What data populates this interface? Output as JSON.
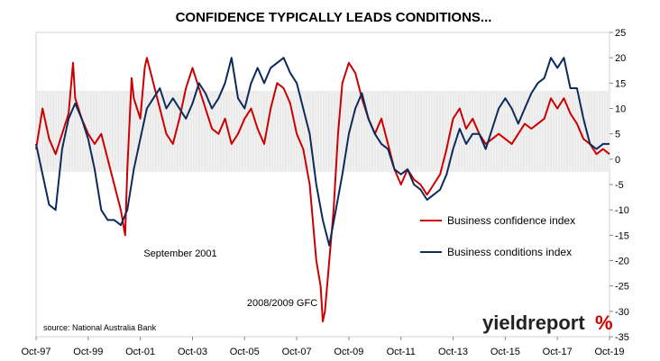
{
  "chart_data": {
    "type": "line",
    "title": "CONFIDENCE TYPICALLY LEADS CONDITIONS...",
    "x_ticks": [
      "Oct-97",
      "Oct-99",
      "Oct-01",
      "Oct-03",
      "Oct-05",
      "Oct-07",
      "Oct-09",
      "Oct-11",
      "Oct-13",
      "Oct-15",
      "Oct-17",
      "Oct-19"
    ],
    "x_range": [
      "1997-10",
      "2019-10"
    ],
    "ylim": [
      -35,
      25
    ],
    "y_ticks": [
      25,
      20,
      15,
      10,
      5,
      0,
      -5,
      -10,
      -15,
      -20,
      -25,
      -30,
      -35
    ],
    "y_axis_side": "right",
    "grid": false,
    "legend_placement": "right-middle",
    "series": [
      {
        "name": "Business confidence index",
        "color": "#cc0000",
        "points": [
          [
            "1997-10",
            2
          ],
          [
            "1998-01",
            10
          ],
          [
            "1998-04",
            4
          ],
          [
            "1998-07",
            1
          ],
          [
            "1998-10",
            5
          ],
          [
            "1999-01",
            9
          ],
          [
            "1999-03",
            19
          ],
          [
            "1999-04",
            12
          ],
          [
            "1999-07",
            8
          ],
          [
            "1999-10",
            5
          ],
          [
            "2000-01",
            3
          ],
          [
            "2000-04",
            5
          ],
          [
            "2000-07",
            0
          ],
          [
            "2000-10",
            -5
          ],
          [
            "2001-01",
            -10
          ],
          [
            "2001-03",
            -15
          ],
          [
            "2001-04",
            -2
          ],
          [
            "2001-06",
            16
          ],
          [
            "2001-07",
            12
          ],
          [
            "2001-10",
            8
          ],
          [
            "2001-12",
            18
          ],
          [
            "2002-01",
            20
          ],
          [
            "2002-04",
            15
          ],
          [
            "2002-07",
            10
          ],
          [
            "2002-10",
            5
          ],
          [
            "2003-01",
            3
          ],
          [
            "2003-04",
            8
          ],
          [
            "2003-07",
            14
          ],
          [
            "2003-10",
            18
          ],
          [
            "2004-01",
            14
          ],
          [
            "2004-04",
            10
          ],
          [
            "2004-07",
            6
          ],
          [
            "2004-10",
            5
          ],
          [
            "2005-01",
            8
          ],
          [
            "2005-04",
            3
          ],
          [
            "2005-07",
            5
          ],
          [
            "2005-10",
            8
          ],
          [
            "2006-01",
            10
          ],
          [
            "2006-04",
            6
          ],
          [
            "2006-07",
            3
          ],
          [
            "2006-10",
            10
          ],
          [
            "2007-01",
            15
          ],
          [
            "2007-04",
            14
          ],
          [
            "2007-07",
            11
          ],
          [
            "2007-10",
            5
          ],
          [
            "2008-01",
            2
          ],
          [
            "2008-04",
            -5
          ],
          [
            "2008-07",
            -20
          ],
          [
            "2008-09",
            -25
          ],
          [
            "2008-10",
            -32
          ],
          [
            "2008-11",
            -30
          ],
          [
            "2009-01",
            -20
          ],
          [
            "2009-03",
            -10
          ],
          [
            "2009-05",
            5
          ],
          [
            "2009-07",
            15
          ],
          [
            "2009-10",
            19
          ],
          [
            "2010-01",
            17
          ],
          [
            "2010-04",
            12
          ],
          [
            "2010-07",
            8
          ],
          [
            "2010-10",
            5
          ],
          [
            "2011-01",
            8
          ],
          [
            "2011-04",
            3
          ],
          [
            "2011-07",
            -2
          ],
          [
            "2011-10",
            -5
          ],
          [
            "2012-01",
            -2
          ],
          [
            "2012-04",
            -4
          ],
          [
            "2012-07",
            -5
          ],
          [
            "2012-10",
            -7
          ],
          [
            "2013-01",
            -5
          ],
          [
            "2013-04",
            -3
          ],
          [
            "2013-07",
            2
          ],
          [
            "2013-10",
            8
          ],
          [
            "2014-01",
            10
          ],
          [
            "2014-04",
            6
          ],
          [
            "2014-07",
            8
          ],
          [
            "2014-10",
            5
          ],
          [
            "2015-01",
            3
          ],
          [
            "2015-04",
            4
          ],
          [
            "2015-07",
            5
          ],
          [
            "2015-10",
            4
          ],
          [
            "2016-01",
            3
          ],
          [
            "2016-04",
            5
          ],
          [
            "2016-07",
            7
          ],
          [
            "2016-10",
            6
          ],
          [
            "2017-01",
            7
          ],
          [
            "2017-04",
            8
          ],
          [
            "2017-07",
            12
          ],
          [
            "2017-10",
            10
          ],
          [
            "2018-01",
            12
          ],
          [
            "2018-04",
            9
          ],
          [
            "2018-07",
            7
          ],
          [
            "2018-10",
            4
          ],
          [
            "2019-01",
            3
          ],
          [
            "2019-04",
            1
          ],
          [
            "2019-07",
            2
          ],
          [
            "2019-10",
            1
          ]
        ]
      },
      {
        "name": "Business conditions index",
        "color": "#0d2a5c",
        "points": [
          [
            "1997-10",
            3
          ],
          [
            "1998-01",
            -3
          ],
          [
            "1998-04",
            -9
          ],
          [
            "1998-07",
            -10
          ],
          [
            "1998-10",
            2
          ],
          [
            "1999-01",
            8
          ],
          [
            "1999-04",
            11
          ],
          [
            "1999-07",
            8
          ],
          [
            "1999-10",
            4
          ],
          [
            "2000-01",
            -2
          ],
          [
            "2000-04",
            -10
          ],
          [
            "2000-07",
            -12
          ],
          [
            "2000-10",
            -12
          ],
          [
            "2001-01",
            -13
          ],
          [
            "2001-04",
            -10
          ],
          [
            "2001-07",
            -2
          ],
          [
            "2001-10",
            4
          ],
          [
            "2002-01",
            10
          ],
          [
            "2002-04",
            12
          ],
          [
            "2002-07",
            14
          ],
          [
            "2002-10",
            10
          ],
          [
            "2003-01",
            12
          ],
          [
            "2003-04",
            10
          ],
          [
            "2003-07",
            8
          ],
          [
            "2003-10",
            11
          ],
          [
            "2004-01",
            15
          ],
          [
            "2004-04",
            13
          ],
          [
            "2004-07",
            10
          ],
          [
            "2004-10",
            12
          ],
          [
            "2005-01",
            15
          ],
          [
            "2005-04",
            20
          ],
          [
            "2005-07",
            12
          ],
          [
            "2005-10",
            10
          ],
          [
            "2006-01",
            15
          ],
          [
            "2006-04",
            18
          ],
          [
            "2006-07",
            15
          ],
          [
            "2006-10",
            18
          ],
          [
            "2007-01",
            19
          ],
          [
            "2007-04",
            20
          ],
          [
            "2007-07",
            17
          ],
          [
            "2007-10",
            15
          ],
          [
            "2008-01",
            10
          ],
          [
            "2008-04",
            5
          ],
          [
            "2008-07",
            -5
          ],
          [
            "2008-10",
            -12
          ],
          [
            "2009-01",
            -17
          ],
          [
            "2009-04",
            -10
          ],
          [
            "2009-07",
            -3
          ],
          [
            "2009-10",
            5
          ],
          [
            "2010-01",
            10
          ],
          [
            "2010-04",
            13
          ],
          [
            "2010-07",
            8
          ],
          [
            "2010-10",
            5
          ],
          [
            "2011-01",
            3
          ],
          [
            "2011-04",
            2
          ],
          [
            "2011-07",
            -2
          ],
          [
            "2011-10",
            -3
          ],
          [
            "2012-01",
            -2
          ],
          [
            "2012-04",
            -5
          ],
          [
            "2012-07",
            -6
          ],
          [
            "2012-10",
            -8
          ],
          [
            "2013-01",
            -7
          ],
          [
            "2013-04",
            -6
          ],
          [
            "2013-07",
            -3
          ],
          [
            "2013-10",
            2
          ],
          [
            "2014-01",
            6
          ],
          [
            "2014-04",
            3
          ],
          [
            "2014-07",
            5
          ],
          [
            "2014-10",
            5
          ],
          [
            "2015-01",
            2
          ],
          [
            "2015-04",
            6
          ],
          [
            "2015-07",
            10
          ],
          [
            "2015-10",
            12
          ],
          [
            "2016-01",
            10
          ],
          [
            "2016-04",
            7
          ],
          [
            "2016-07",
            10
          ],
          [
            "2016-10",
            13
          ],
          [
            "2017-01",
            15
          ],
          [
            "2017-04",
            16
          ],
          [
            "2017-07",
            20
          ],
          [
            "2017-10",
            18
          ],
          [
            "2018-01",
            20
          ],
          [
            "2018-04",
            14
          ],
          [
            "2018-07",
            14
          ],
          [
            "2018-10",
            8
          ],
          [
            "2019-01",
            3
          ],
          [
            "2019-04",
            2
          ],
          [
            "2019-07",
            3
          ],
          [
            "2019-10",
            3
          ]
        ]
      }
    ],
    "annotations": [
      {
        "text": "September 2001",
        "x": "2001-09",
        "y": -18.5
      },
      {
        "text": "2008/2009 GFC",
        "x": "2008-04",
        "y": -28
      }
    ],
    "band": {
      "y_from": -2.5,
      "y_to": 13.5
    },
    "source": "source: National Australia Bank",
    "logo": {
      "text": "yieldreport",
      "symbol": "%",
      "accent_color": "#4a9a3a",
      "symbol_color": "#cc0000"
    }
  }
}
